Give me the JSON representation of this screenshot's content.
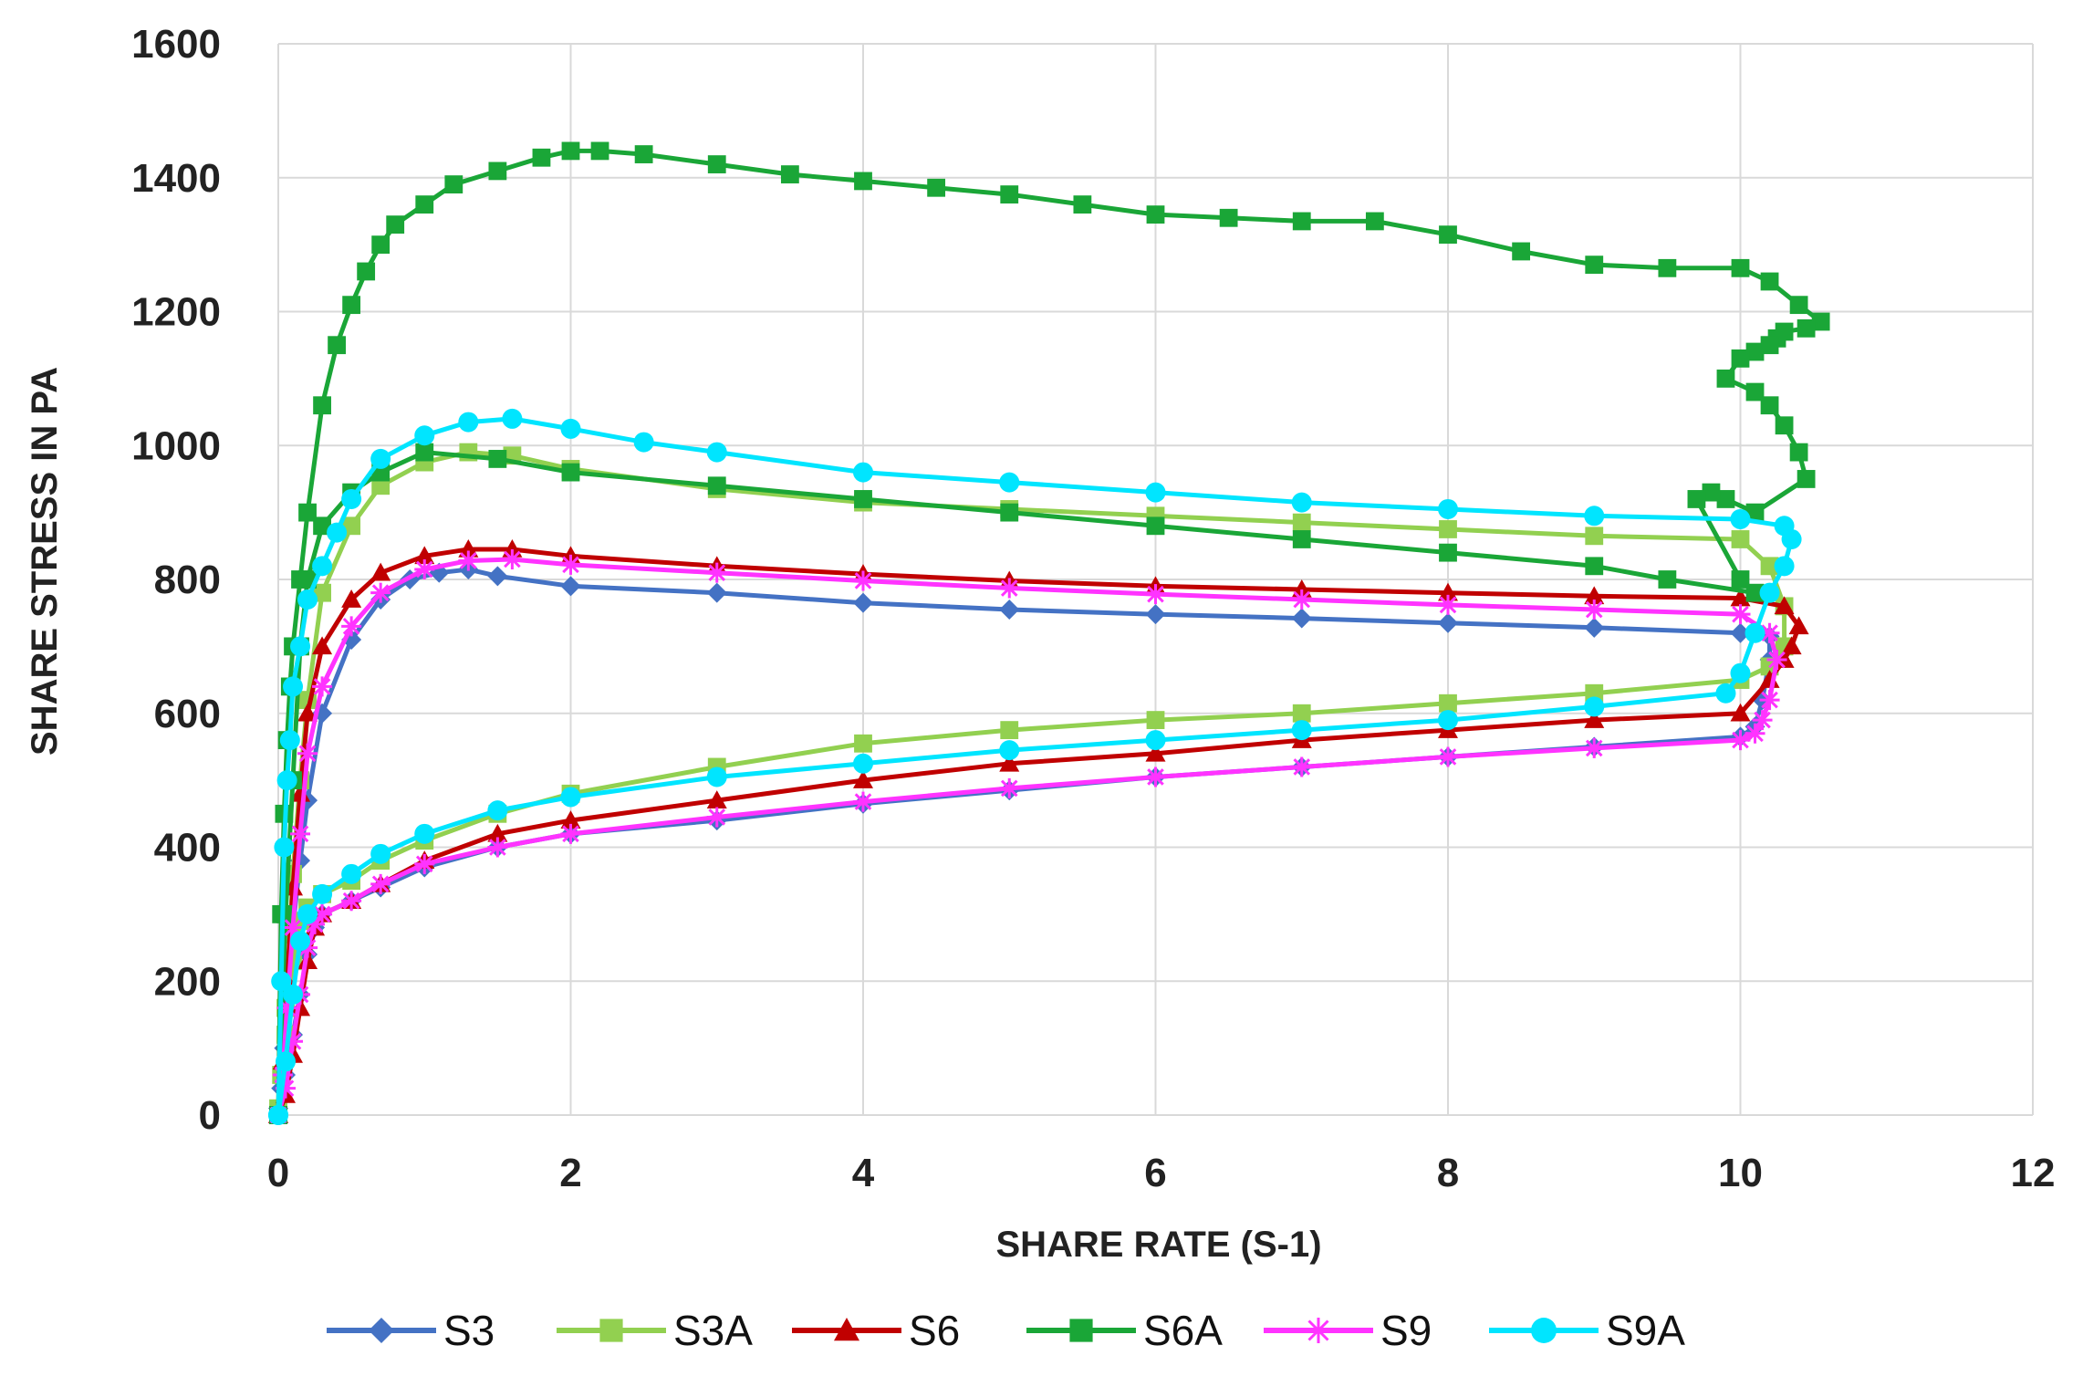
{
  "chart_data": {
    "type": "scatter",
    "title": "",
    "xlabel": "SHARE RATE (S-1)",
    "ylabel": "SHARE STRESS IN PA",
    "xlim": [
      0,
      12
    ],
    "ylim": [
      0,
      1600
    ],
    "x_ticks": [
      "0",
      "2",
      "4",
      "6",
      "8",
      "10",
      "12"
    ],
    "y_ticks": [
      "0",
      "200",
      "400",
      "600",
      "800",
      "1000",
      "1200",
      "1400",
      "1600"
    ],
    "grid": true,
    "legend_position": "bottom",
    "series": [
      {
        "name": "S3",
        "color": "#4472C4",
        "marker": "diamond",
        "x": [
          0,
          0.02,
          0.04,
          0.06,
          0.08,
          0.1,
          0.15,
          0.2,
          0.3,
          0.5,
          0.7,
          0.9,
          1.1,
          1.3,
          1.5,
          2,
          3,
          4,
          5,
          6,
          7,
          8,
          9,
          10,
          10.2,
          10.2,
          10.15,
          10.1,
          10,
          9,
          8,
          7,
          6,
          5,
          4,
          3,
          2,
          1.5,
          1,
          0.7,
          0.5,
          0.3,
          0.25,
          0.2,
          0.15,
          0.1,
          0.05,
          0
        ],
        "y": [
          0,
          40,
          100,
          160,
          220,
          280,
          380,
          470,
          600,
          710,
          770,
          800,
          810,
          815,
          805,
          790,
          780,
          765,
          755,
          748,
          742,
          735,
          728,
          720,
          715,
          680,
          620,
          580,
          565,
          550,
          535,
          520,
          505,
          485,
          465,
          440,
          420,
          400,
          370,
          340,
          320,
          300,
          280,
          240,
          180,
          120,
          60,
          10
        ]
      },
      {
        "name": "S3A",
        "color": "#92D050",
        "marker": "square",
        "x": [
          0,
          0.02,
          0.05,
          0.08,
          0.1,
          0.15,
          0.2,
          0.3,
          0.5,
          0.7,
          1,
          1.3,
          1.6,
          2,
          3,
          4,
          5,
          6,
          7,
          8,
          9,
          10,
          10.2,
          10.3,
          10.3,
          10.2,
          10,
          9,
          8,
          7,
          6,
          5,
          4,
          3,
          2,
          1.5,
          1,
          0.7,
          0.5,
          0.3,
          0.2,
          0.15,
          0.1,
          0.05,
          0
        ],
        "y": [
          0,
          60,
          160,
          270,
          360,
          500,
          620,
          780,
          880,
          940,
          975,
          990,
          985,
          965,
          935,
          915,
          905,
          895,
          885,
          875,
          865,
          860,
          820,
          760,
          700,
          670,
          650,
          630,
          615,
          600,
          590,
          575,
          555,
          520,
          480,
          450,
          410,
          380,
          350,
          330,
          310,
          290,
          230,
          120,
          10
        ]
      },
      {
        "name": "S6",
        "color": "#C00000",
        "marker": "triangle",
        "x": [
          0,
          0.03,
          0.06,
          0.1,
          0.15,
          0.2,
          0.3,
          0.5,
          0.7,
          1,
          1.3,
          1.6,
          2,
          3,
          4,
          5,
          6,
          7,
          8,
          9,
          10,
          10.3,
          10.4,
          10.35,
          10.3,
          10.2,
          10,
          9,
          8,
          7,
          6,
          5,
          4,
          3,
          2,
          1.5,
          1,
          0.7,
          0.5,
          0.3,
          0.25,
          0.2,
          0.15,
          0.1,
          0.05,
          0
        ],
        "y": [
          0,
          80,
          200,
          340,
          480,
          600,
          700,
          770,
          810,
          835,
          845,
          845,
          835,
          820,
          808,
          798,
          790,
          785,
          780,
          775,
          772,
          760,
          730,
          700,
          680,
          650,
          600,
          590,
          575,
          560,
          540,
          525,
          500,
          470,
          440,
          420,
          380,
          345,
          320,
          300,
          280,
          230,
          160,
          90,
          30,
          0
        ]
      },
      {
        "name": "S6A",
        "color": "#1AA637",
        "marker": "square",
        "x": [
          0,
          0.02,
          0.04,
          0.06,
          0.08,
          0.1,
          0.15,
          0.2,
          0.3,
          0.4,
          0.5,
          0.6,
          0.7,
          0.8,
          1,
          1.2,
          1.5,
          1.8,
          2,
          2.2,
          2.5,
          3,
          3.5,
          4,
          4.5,
          5,
          5.5,
          6,
          6.5,
          7,
          7.5,
          8,
          8.5,
          9,
          9.5,
          10,
          10.2,
          10.4,
          10.55,
          10.45,
          10.3,
          10.25,
          10.2,
          10.1,
          10,
          9.9,
          10.1,
          10.2,
          10.3,
          10.4,
          10.45,
          10.1,
          9.9,
          9.8,
          9.7,
          10,
          10.1,
          9.5,
          9,
          8,
          7,
          6,
          5,
          4,
          3,
          2,
          1.5,
          1,
          0.7,
          0.5,
          0.3,
          0.2,
          0.15,
          0.1,
          0.05,
          0
        ],
        "y": [
          0,
          300,
          450,
          560,
          640,
          700,
          800,
          900,
          1060,
          1150,
          1210,
          1260,
          1300,
          1330,
          1360,
          1390,
          1410,
          1430,
          1440,
          1440,
          1435,
          1420,
          1405,
          1395,
          1385,
          1375,
          1360,
          1345,
          1340,
          1335,
          1335,
          1315,
          1290,
          1270,
          1265,
          1265,
          1245,
          1210,
          1185,
          1175,
          1170,
          1160,
          1150,
          1140,
          1130,
          1100,
          1080,
          1060,
          1030,
          990,
          950,
          900,
          920,
          930,
          920,
          800,
          780,
          800,
          820,
          840,
          860,
          880,
          900,
          920,
          940,
          960,
          980,
          990,
          960,
          930,
          880,
          800,
          700,
          500,
          300,
          0
        ]
      },
      {
        "name": "S9",
        "color": "#FF33FF",
        "marker": "star",
        "x": [
          0,
          0.03,
          0.06,
          0.1,
          0.15,
          0.2,
          0.3,
          0.5,
          0.7,
          1,
          1.3,
          1.6,
          2,
          3,
          4,
          5,
          6,
          7,
          8,
          9,
          10,
          10.2,
          10.25,
          10.2,
          10.15,
          10.1,
          10,
          9,
          8,
          7,
          6,
          5,
          4,
          3,
          2,
          1.5,
          1,
          0.7,
          0.5,
          0.3,
          0.25,
          0.2,
          0.15,
          0.1,
          0.05,
          0
        ],
        "y": [
          0,
          60,
          160,
          280,
          420,
          540,
          640,
          730,
          780,
          815,
          828,
          830,
          822,
          810,
          798,
          787,
          778,
          770,
          762,
          755,
          748,
          720,
          680,
          620,
          590,
          570,
          560,
          548,
          535,
          520,
          505,
          488,
          468,
          445,
          420,
          400,
          375,
          345,
          320,
          300,
          285,
          250,
          180,
          110,
          40,
          0
        ]
      },
      {
        "name": "S9A",
        "color": "#00E5FF",
        "marker": "circle",
        "x": [
          0,
          0.02,
          0.04,
          0.06,
          0.08,
          0.1,
          0.15,
          0.2,
          0.3,
          0.4,
          0.5,
          0.7,
          1,
          1.3,
          1.6,
          2,
          2.5,
          3,
          4,
          5,
          6,
          7,
          8,
          9,
          10,
          10.3,
          10.35,
          10.3,
          10.2,
          10.1,
          10,
          9.9,
          9,
          8,
          7,
          6,
          5,
          4,
          3,
          2,
          1.5,
          1,
          0.7,
          0.5,
          0.3,
          0.2,
          0.15,
          0.1,
          0.05,
          0
        ],
        "y": [
          0,
          200,
          400,
          500,
          560,
          640,
          700,
          770,
          820,
          870,
          920,
          980,
          1015,
          1035,
          1040,
          1025,
          1005,
          990,
          960,
          945,
          930,
          915,
          905,
          895,
          890,
          880,
          860,
          820,
          780,
          720,
          660,
          630,
          610,
          590,
          575,
          560,
          545,
          525,
          505,
          475,
          455,
          420,
          390,
          360,
          330,
          300,
          260,
          180,
          80,
          0
        ]
      }
    ]
  }
}
